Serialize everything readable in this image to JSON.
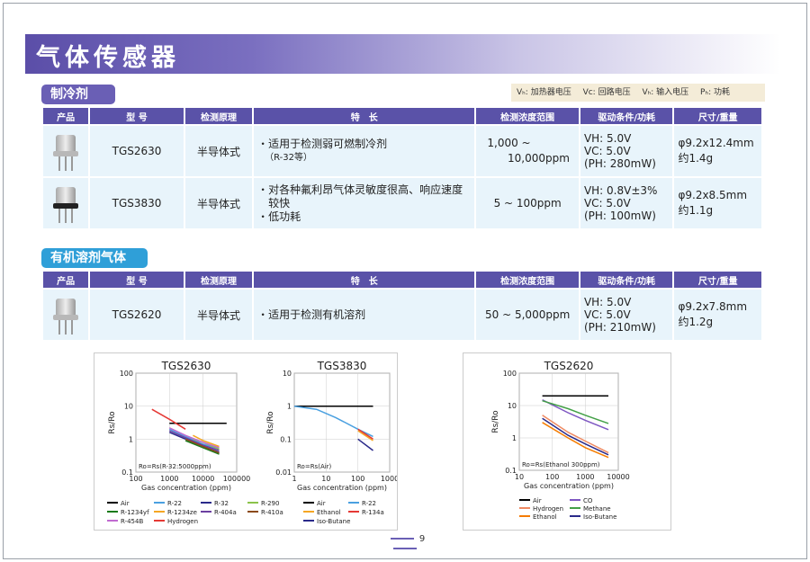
{
  "page_title": "气体传感器",
  "page_number": "9",
  "section1": {
    "label": "制冷剂"
  },
  "section2": {
    "label": "有机溶剂气体"
  },
  "legend": {
    "items": [
      "Vₕ: 加热器电压",
      "Vc: 回路电压",
      "Vₕ: 输入电压",
      "Pₕ: 功耗"
    ]
  },
  "table_headers": [
    "产品",
    "型 号",
    "检测原理",
    "特　长",
    "检测浓度范围",
    "驱动条件/功耗",
    "尺寸/重量"
  ],
  "table1_rows": [
    {
      "model": "TGS2630",
      "principle": "半导体式",
      "features": [
        "・适用于检测弱可燃制冷剂",
        "（R-32等）"
      ],
      "range": [
        "1,000 ~",
        "10,000ppm"
      ],
      "drive": [
        "VH: 5.0V",
        "VC: 5.0V",
        "(PH: 280mW)"
      ],
      "size": [
        "φ9.2x12.4mm",
        "约1.4g"
      ]
    },
    {
      "model": "TGS3830",
      "principle": "半导体式",
      "features": [
        "・对各种氟利昂气体灵敏度很高、响应速度",
        "　较快",
        "・低功耗"
      ],
      "range": [
        "5 ~ 100ppm"
      ],
      "drive": [
        "VH: 0.8V±3%",
        "VC: 5.0V",
        "(PH: 100mW)"
      ],
      "size": [
        "φ9.2x8.5mm",
        "约1.1g"
      ]
    }
  ],
  "table2_rows": [
    {
      "model": "TGS2620",
      "principle": "半导体式",
      "features": [
        "・适用于检测有机溶剂"
      ],
      "range": [
        "50 ~ 5,000ppm"
      ],
      "drive": [
        "VH: 5.0V",
        "VC: 5.0V",
        "(PH: 210mW)"
      ],
      "size": [
        "φ9.2x7.8mm",
        "约1.2g"
      ]
    }
  ],
  "chart_data": [
    {
      "type": "line",
      "title": "TGS2630",
      "xlabel": "Gas concentration (ppm)",
      "ylabel": "Rs/Ro",
      "x_scale": "log",
      "y_scale": "log",
      "xlim": [
        100,
        100000
      ],
      "ylim": [
        0.1,
        100
      ],
      "xticks": [
        "100",
        "1000",
        "10000",
        "100000"
      ],
      "yticks": [
        "100",
        "10",
        "1",
        "0.1"
      ],
      "annotation": "Ro=Rs(R-32:5000ppm)",
      "series": [
        {
          "name": "Air",
          "color": "#000000",
          "points": [
            [
              1000,
              3
            ],
            [
              50000,
              3
            ]
          ]
        },
        {
          "name": "R-22",
          "color": "#4aa0e0",
          "points": [
            [
              1000,
              2
            ],
            [
              3000,
              1.2
            ],
            [
              10000,
              0.7
            ],
            [
              30000,
              0.5
            ]
          ]
        },
        {
          "name": "R-32",
          "color": "#2a2a8a",
          "points": [
            [
              1000,
              1.6
            ],
            [
              3000,
              1.0
            ],
            [
              10000,
              0.6
            ],
            [
              30000,
              0.4
            ]
          ]
        },
        {
          "name": "R-290",
          "color": "#8bc34a",
          "points": [
            [
              5000,
              1
            ],
            [
              10000,
              0.8
            ],
            [
              30000,
              0.5
            ]
          ]
        },
        {
          "name": "R-1234yf",
          "color": "#1a7a1a",
          "points": [
            [
              3000,
              0.9
            ],
            [
              10000,
              0.55
            ],
            [
              30000,
              0.35
            ]
          ]
        },
        {
          "name": "R-1234ze",
          "color": "#f5a623",
          "points": [
            [
              5000,
              1.3
            ],
            [
              10000,
              0.9
            ],
            [
              30000,
              0.6
            ]
          ]
        },
        {
          "name": "R-404a",
          "color": "#6b3fa0",
          "points": [
            [
              1000,
              1.8
            ],
            [
              3000,
              1.1
            ],
            [
              10000,
              0.65
            ],
            [
              30000,
              0.45
            ]
          ]
        },
        {
          "name": "R-410a",
          "color": "#8b4a1a",
          "points": [
            [
              3000,
              1.0
            ],
            [
              10000,
              0.6
            ],
            [
              30000,
              0.38
            ]
          ]
        },
        {
          "name": "R-454B",
          "color": "#c06ad0",
          "points": [
            [
              1000,
              2.2
            ],
            [
              3000,
              1.3
            ],
            [
              10000,
              0.8
            ],
            [
              30000,
              0.55
            ]
          ]
        },
        {
          "name": "Hydrogen",
          "color": "#e53935",
          "points": [
            [
              300,
              8
            ],
            [
              1000,
              4
            ],
            [
              3000,
              2
            ]
          ]
        }
      ]
    },
    {
      "type": "line",
      "title": "TGS3830",
      "xlabel": "Gas concentration (ppm)",
      "ylabel": "Rs/Ro",
      "x_scale": "log",
      "y_scale": "log",
      "xlim": [
        1,
        1000
      ],
      "ylim": [
        0.01,
        10
      ],
      "xticks": [
        "1",
        "10",
        "100",
        "1000"
      ],
      "yticks": [
        "10",
        "1",
        "0.1",
        "0.01"
      ],
      "annotation": "Ro=Rs(Air)",
      "series": [
        {
          "name": "Air",
          "color": "#000000",
          "points": [
            [
              1,
              1
            ],
            [
              300,
              1
            ]
          ]
        },
        {
          "name": "R-22",
          "color": "#4aa0e0",
          "points": [
            [
              1,
              1
            ],
            [
              5,
              0.8
            ],
            [
              20,
              0.45
            ],
            [
              100,
              0.2
            ],
            [
              300,
              0.12
            ]
          ]
        },
        {
          "name": "Ethanol",
          "color": "#f5a623",
          "points": [
            [
              100,
              0.18
            ],
            [
              300,
              0.09
            ]
          ]
        },
        {
          "name": "R-134a",
          "color": "#e53935",
          "points": [
            [
              100,
              0.2
            ],
            [
              300,
              0.1
            ]
          ]
        },
        {
          "name": "Iso-Butane",
          "color": "#2a2a8a",
          "points": [
            [
              100,
              0.1
            ],
            [
              300,
              0.045
            ]
          ]
        }
      ]
    },
    {
      "type": "line",
      "title": "TGS2620",
      "xlabel": "Gas concentration (ppm)",
      "ylabel": "Rs/Ro",
      "x_scale": "log",
      "y_scale": "log",
      "xlim": [
        10,
        10000
      ],
      "ylim": [
        0.1,
        100
      ],
      "xticks": [
        "10",
        "100",
        "1000",
        "10000"
      ],
      "yticks": [
        "100",
        "10",
        "1",
        "0.1"
      ],
      "annotation": "Ro=Rs(Ethanol 300ppm)",
      "series": [
        {
          "name": "Air",
          "color": "#000000",
          "points": [
            [
              50,
              20
            ],
            [
              5000,
              20
            ]
          ]
        },
        {
          "name": "CO",
          "color": "#7e57c2",
          "points": [
            [
              50,
              15
            ],
            [
              300,
              6
            ],
            [
              1000,
              3.5
            ],
            [
              5000,
              1.8
            ]
          ]
        },
        {
          "name": "Hydrogen",
          "color": "#ef8a62",
          "points": [
            [
              50,
              5
            ],
            [
              300,
              1.5
            ],
            [
              1000,
              0.8
            ],
            [
              5000,
              0.35
            ]
          ]
        },
        {
          "name": "Methane",
          "color": "#43a047",
          "points": [
            [
              50,
              14
            ],
            [
              300,
              8
            ],
            [
              1000,
              5
            ],
            [
              5000,
              2.8
            ]
          ]
        },
        {
          "name": "Ethanol",
          "color": "#f57c00",
          "points": [
            [
              50,
              3
            ],
            [
              300,
              1
            ],
            [
              1000,
              0.5
            ],
            [
              5000,
              0.25
            ]
          ]
        },
        {
          "name": "Iso-Butane",
          "color": "#2a2a8a",
          "points": [
            [
              50,
              4
            ],
            [
              300,
              1.2
            ],
            [
              1000,
              0.65
            ],
            [
              5000,
              0.3
            ]
          ]
        }
      ]
    }
  ]
}
